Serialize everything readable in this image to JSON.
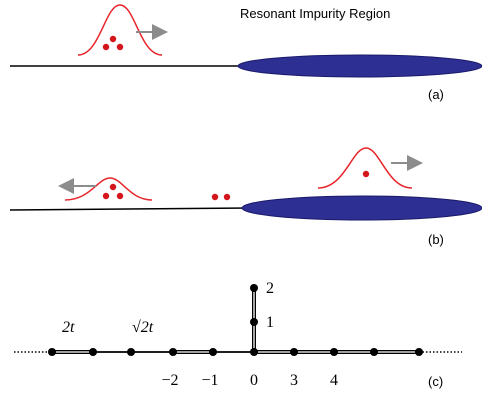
{
  "panel_a": {
    "title": "Resonant Impurity Region",
    "label": "(a)"
  },
  "panel_b": {
    "label": "(b)"
  },
  "panel_c": {
    "label": "(c)",
    "bond_labels": [
      "2t",
      "√2t"
    ],
    "site_labels": [
      "−2",
      "−1",
      "0",
      "3",
      "4"
    ],
    "branch_labels": [
      "2",
      "1"
    ]
  }
}
